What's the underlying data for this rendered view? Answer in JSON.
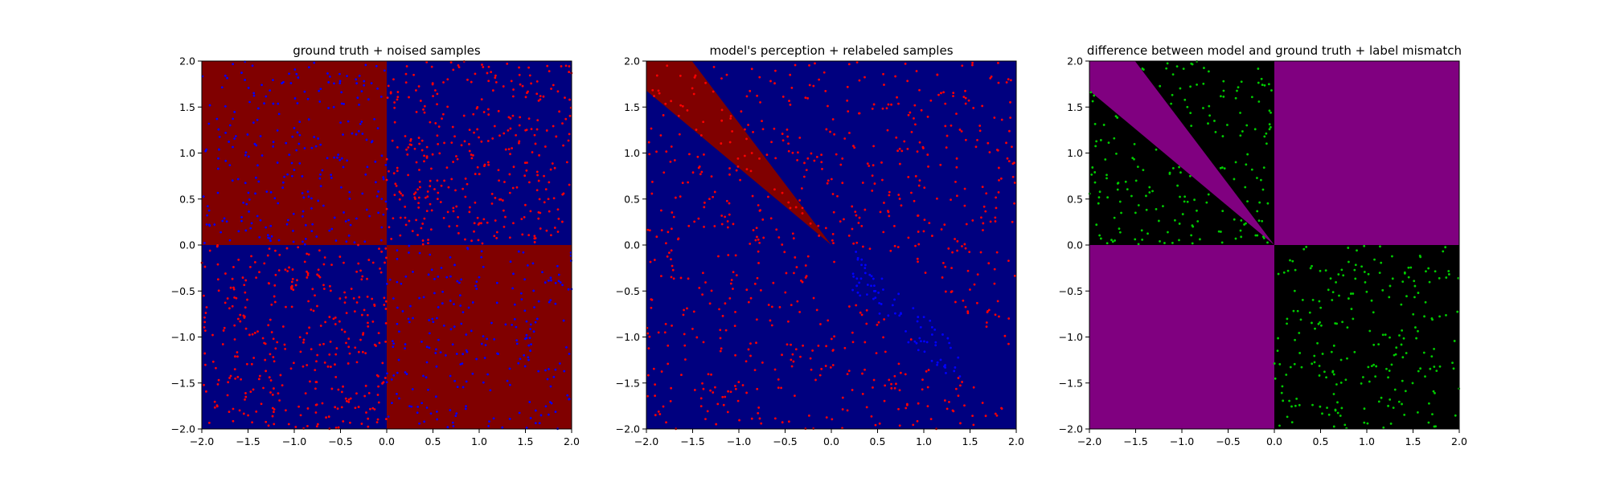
{
  "chart_data": [
    {
      "type": "scatter",
      "title": "ground truth + noised samples",
      "xlabel": "",
      "ylabel": "",
      "xlim": [
        -2.0,
        2.0
      ],
      "ylim": [
        -2.0,
        2.0
      ],
      "xticks": [
        "−2.0",
        "−1.5",
        "−1.0",
        "−0.5",
        "0.0",
        "0.5",
        "1.0",
        "1.5",
        "2.0"
      ],
      "yticks": [
        "−2.0",
        "−1.5",
        "−1.0",
        "−0.5",
        "0.0",
        "0.5",
        "1.0",
        "1.5",
        "2.0"
      ],
      "grid": false,
      "background": "quadrants",
      "region_colors": {
        "red": "#800000",
        "blue": "#00007f"
      },
      "series": [
        {
          "color": "#ff0000",
          "region": "x*y>0",
          "count": 700
        },
        {
          "color": "#0000ff",
          "region": "x*y<0",
          "count": 500
        }
      ]
    },
    {
      "type": "scatter",
      "title": "model's perception + relabeled samples",
      "xlabel": "",
      "ylabel": "",
      "xlim": [
        -2.0,
        2.0
      ],
      "ylim": [
        -2.0,
        2.0
      ],
      "xticks": [
        "−2.0",
        "−1.5",
        "−1.0",
        "−0.5",
        "0.0",
        "0.5",
        "1.0",
        "1.5",
        "2.0"
      ],
      "yticks": [
        "−2.0",
        "−1.5",
        "−1.0",
        "−0.5",
        "0.0",
        "0.5",
        "1.0",
        "1.5",
        "2.0"
      ],
      "grid": false,
      "background": "wedge",
      "wedge_angles_deg": [
        140,
        127
      ],
      "region_colors": {
        "red": "#800000",
        "blue": "#00007f"
      },
      "series": [
        {
          "color": "#ff0000",
          "region": "all",
          "count": 720
        },
        {
          "color": "#0000ff",
          "region": "band",
          "count": 80
        }
      ]
    },
    {
      "type": "scatter",
      "title": "difference between model and ground truth + label mismatch",
      "xlabel": "",
      "ylabel": "",
      "xlim": [
        -2.0,
        2.0
      ],
      "ylim": [
        -2.0,
        2.0
      ],
      "xticks": [
        "−2.0",
        "−1.5",
        "−1.0",
        "−0.5",
        "0.0",
        "0.5",
        "1.0",
        "1.5",
        "2.0"
      ],
      "yticks": [
        "−2.0",
        "−1.5",
        "−1.0",
        "−0.5",
        "0.0",
        "0.5",
        "1.0",
        "1.5",
        "2.0"
      ],
      "grid": false,
      "background": "difference",
      "wedge_angles_deg": [
        140,
        127
      ],
      "region_colors": {
        "purple": "#800080",
        "black": "#000000"
      },
      "series": [
        {
          "color": "#00cc00",
          "region": "x*y<0",
          "count": 420
        }
      ]
    }
  ]
}
